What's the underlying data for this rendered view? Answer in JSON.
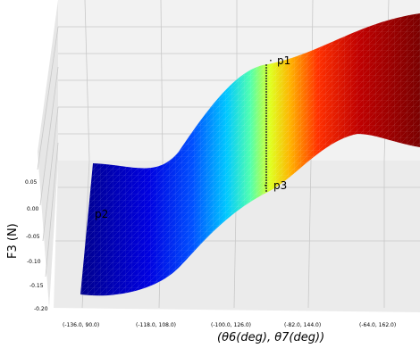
{
  "chart_data": {
    "type": "surface3d",
    "xlabel": "(θ6(deg), θ7(deg))",
    "ylabel": "F3 (N)",
    "x_ticks": [
      "(-136.0, 90.0)",
      "(-118.0, 108.0)",
      "(-100.0, 126.0)",
      "(-82.0, 144.0)",
      "(-64.0, 162.0)"
    ],
    "y_ticks": [
      "0.05",
      "0.00",
      "-0.05",
      "-0.10",
      "-0.15",
      "-0.20"
    ],
    "zlim": [
      -0.2,
      0.07
    ],
    "colormap": "jet",
    "surface": {
      "description_points": [
        {
          "x": "(-136.0, 90.0)",
          "f3": -0.17
        },
        {
          "x": "(-118.0, 108.0)",
          "f3": -0.16
        },
        {
          "x": "(-100.0, 126.0)",
          "f3": -0.06
        },
        {
          "x": "(-82.0, 144.0)",
          "f3": 0.06
        },
        {
          "x": "(-64.0, 162.0)",
          "f3": 0.04
        }
      ]
    },
    "annotations": [
      {
        "label": "p1"
      },
      {
        "label": "p2"
      },
      {
        "label": "p3"
      }
    ],
    "grid": true
  }
}
